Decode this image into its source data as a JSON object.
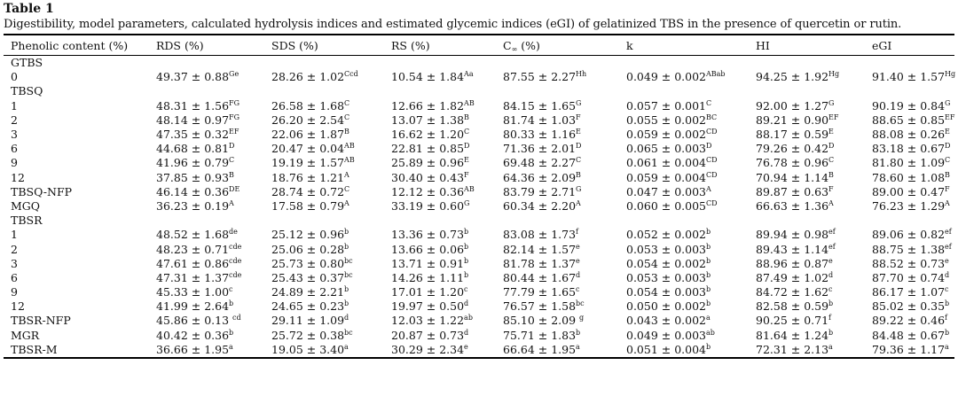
{
  "table_label": "Table 1",
  "caption": "Digestibility, model parameters, calculated hydrolysis indices and estimated glycemic indices (eGI) of gelatinized TBS in the presence of quercetin or rutin.",
  "headers": [
    "Phenolic content (%)",
    "RDS (%)",
    "SDS (%)",
    "RS (%)",
    "C",
    "k",
    "HI",
    "eGI"
  ],
  "header_cinf_sub": "∞",
  "header_cinf_suffix": " (%)",
  "rows": [
    {
      "group": "GTBS"
    },
    {
      "label": "0",
      "cells": [
        [
          "49.37 ± 0.88",
          "Ge"
        ],
        [
          "28.26 ± 1.02",
          "Ccd"
        ],
        [
          "10.54 ± 1.84",
          "Aa"
        ],
        [
          "87.55 ± 2.27",
          "Hh"
        ],
        [
          "0.049 ± 0.002",
          "ABab"
        ],
        [
          "94.25 ± 1.92",
          "Hg"
        ],
        [
          "91.40 ± 1.57",
          "Hg"
        ]
      ]
    },
    {
      "group": "TBSQ"
    },
    {
      "label": "1",
      "cells": [
        [
          "48.31 ± 1.56",
          "FG"
        ],
        [
          "26.58 ± 1.68",
          "C"
        ],
        [
          "12.66 ± 1.82",
          "AB"
        ],
        [
          "84.15 ± 1.65",
          "G"
        ],
        [
          "0.057 ± 0.001",
          "C"
        ],
        [
          "92.00 ± 1.27",
          "G"
        ],
        [
          "90.19 ± 0.84",
          "G"
        ]
      ]
    },
    {
      "label": "2",
      "cells": [
        [
          "48.14 ± 0.97",
          "FG"
        ],
        [
          "26.20 ± 2.54",
          "C"
        ],
        [
          "13.07 ± 1.38",
          "B"
        ],
        [
          "81.74 ± 1.03",
          "F"
        ],
        [
          "0.055 ± 0.002",
          "BC"
        ],
        [
          "89.21 ± 0.90",
          "EF"
        ],
        [
          "88.65 ± 0.85",
          "EF"
        ]
      ]
    },
    {
      "label": "3",
      "cells": [
        [
          "47.35 ± 0.32",
          "EF"
        ],
        [
          "22.06 ± 1.87",
          "B"
        ],
        [
          "16.62 ± 1.20",
          "C"
        ],
        [
          "80.33 ± 1.16",
          "E"
        ],
        [
          "0.059 ± 0.002",
          "CD"
        ],
        [
          "88.17 ± 0.59",
          "E"
        ],
        [
          "88.08 ± 0.26",
          "E"
        ]
      ]
    },
    {
      "label": "6",
      "cells": [
        [
          "44.68 ± 0.81",
          "D"
        ],
        [
          "20.47 ± 0.04",
          "AB"
        ],
        [
          "22.81 ± 0.85",
          "D"
        ],
        [
          "71.36 ± 2.01",
          "D"
        ],
        [
          "0.065 ± 0.003",
          "D"
        ],
        [
          "79.26 ± 0.42",
          "D"
        ],
        [
          "83.18 ± 0.67",
          "D"
        ]
      ]
    },
    {
      "label": "9",
      "cells": [
        [
          "41.96 ± 0.79",
          "C"
        ],
        [
          "19.19 ± 1.57",
          "AB"
        ],
        [
          "25.89 ± 0.96",
          "E"
        ],
        [
          "69.48 ± 2.27",
          "C"
        ],
        [
          "0.061 ± 0.004",
          "CD"
        ],
        [
          "76.78 ± 0.96",
          "C"
        ],
        [
          "81.80 ± 1.09",
          "C"
        ]
      ]
    },
    {
      "label": "12",
      "cells": [
        [
          "37.85 ± 0.93",
          "B"
        ],
        [
          "18.76 ± 1.21",
          "A"
        ],
        [
          "30.40 ± 0.43",
          "F"
        ],
        [
          "64.36 ± 2.09",
          "B"
        ],
        [
          "0.059 ± 0.004",
          "CD"
        ],
        [
          "70.94 ± 1.14",
          "B"
        ],
        [
          "78.60 ± 1.08",
          "B"
        ]
      ]
    },
    {
      "label": "TBSQ-NFP",
      "cells": [
        [
          "46.14 ± 0.36",
          "DE"
        ],
        [
          "28.74 ± 0.72",
          "C"
        ],
        [
          "12.12 ± 0.36",
          "AB"
        ],
        [
          "83.79 ± 2.71",
          "G"
        ],
        [
          "0.047 ± 0.003",
          "A"
        ],
        [
          "89.87 ± 0.63",
          "F"
        ],
        [
          "89.00 ± 0.47",
          "F"
        ]
      ]
    },
    {
      "label": "MGQ",
      "cells": [
        [
          "36.23 ± 0.19",
          "A"
        ],
        [
          "17.58 ± 0.79",
          "A"
        ],
        [
          "33.19 ± 0.60",
          "G"
        ],
        [
          "60.34 ± 2.20",
          "A"
        ],
        [
          "0.060 ± 0.005",
          "CD"
        ],
        [
          "66.63 ± 1.36",
          "A"
        ],
        [
          "76.23 ± 1.29",
          "A"
        ]
      ]
    },
    {
      "group": "TBSR"
    },
    {
      "label": "1",
      "cells": [
        [
          "48.52 ± 1.68",
          "de"
        ],
        [
          "25.12 ± 0.96",
          "b"
        ],
        [
          "13.36 ± 0.73",
          "b"
        ],
        [
          "83.08 ± 1.73",
          "f"
        ],
        [
          "0.052 ± 0.002",
          "b"
        ],
        [
          "89.94 ± 0.98",
          "ef"
        ],
        [
          "89.06 ± 0.82",
          "ef"
        ]
      ]
    },
    {
      "label": "2",
      "cells": [
        [
          "48.23 ± 0.71",
          "cde"
        ],
        [
          "25.06 ± 0.28",
          "b"
        ],
        [
          "13.66 ± 0.06",
          "b"
        ],
        [
          "82.14 ± 1.57",
          "e"
        ],
        [
          "0.053 ± 0.003",
          "b"
        ],
        [
          "89.43 ± 1.14",
          "ef"
        ],
        [
          "88.75 ± 1.38",
          "ef"
        ]
      ]
    },
    {
      "label": "3",
      "cells": [
        [
          "47.61 ± 0.86",
          "cde"
        ],
        [
          "25.73 ± 0.80",
          "bc"
        ],
        [
          "13.71 ± 0.91",
          "b"
        ],
        [
          "81.78 ± 1.37",
          "e"
        ],
        [
          "0.054 ± 0.002",
          "b"
        ],
        [
          "88.96 ± 0.87",
          "e"
        ],
        [
          "88.52 ± 0.73",
          "e"
        ]
      ]
    },
    {
      "label": "6",
      "cells": [
        [
          "47.31 ± 1.37",
          "cde"
        ],
        [
          "25.43 ± 0.37",
          "bc"
        ],
        [
          "14.26 ± 1.11",
          "b"
        ],
        [
          "80.44 ± 1.67",
          "d"
        ],
        [
          "0.053 ± 0.003",
          "b"
        ],
        [
          "87.49 ± 1.02",
          "d"
        ],
        [
          "87.70 ± 0.74",
          "d"
        ]
      ]
    },
    {
      "label": "9",
      "cells": [
        [
          "45.33 ± 1.00",
          "c"
        ],
        [
          "24.89 ± 2.21",
          "b"
        ],
        [
          "17.01 ± 1.20",
          "c"
        ],
        [
          "77.79 ± 1.65",
          "c"
        ],
        [
          "0.054 ± 0.003",
          "b"
        ],
        [
          "84.72 ± 1.62",
          "c"
        ],
        [
          "86.17 ± 1.07",
          "c"
        ]
      ]
    },
    {
      "label": "12",
      "cells": [
        [
          "41.99 ± 2.64",
          "b"
        ],
        [
          "24.65 ± 0.23",
          "b"
        ],
        [
          "19.97 ± 0.50",
          "d"
        ],
        [
          "76.57 ± 1.58",
          "bc"
        ],
        [
          "0.050 ± 0.002",
          "b"
        ],
        [
          "82.58 ± 0.59",
          "b"
        ],
        [
          "85.02 ± 0.35",
          "b"
        ]
      ]
    },
    {
      "label": "TBSR-NFP",
      "cells": [
        [
          "45.86 ± 0.13 ",
          "cd"
        ],
        [
          "29.11 ± 1.09",
          "d"
        ],
        [
          "12.03 ± 1.22",
          "ab"
        ],
        [
          "85.10 ± 2.09 ",
          "g"
        ],
        [
          "0.043 ± 0.002",
          "a"
        ],
        [
          "90.25 ± 0.71",
          "f"
        ],
        [
          "89.22 ± 0.46",
          "f"
        ]
      ]
    },
    {
      "label": "MGR",
      "cells": [
        [
          "40.42 ± 0.36",
          "b"
        ],
        [
          "25.72 ± 0.38",
          "bc"
        ],
        [
          "20.87 ± 0.73",
          "d"
        ],
        [
          "75.71 ± 1.83",
          "b"
        ],
        [
          "0.049 ± 0.003",
          "ab"
        ],
        [
          "81.64 ± 1.24",
          "b"
        ],
        [
          "84.48 ± 0.67",
          "b"
        ]
      ]
    },
    {
      "label": "TBSR-M",
      "cells": [
        [
          "36.66 ± 1.95",
          "a"
        ],
        [
          "19.05 ± 3.40",
          "a"
        ],
        [
          "30.29 ± 2.34",
          "e"
        ],
        [
          "66.64 ± 1.95",
          "a"
        ],
        [
          "0.051 ± 0.004",
          "b"
        ],
        [
          "72.31 ± 2.13",
          "a"
        ],
        [
          "79.36 ± 1.17",
          "a"
        ]
      ]
    }
  ]
}
